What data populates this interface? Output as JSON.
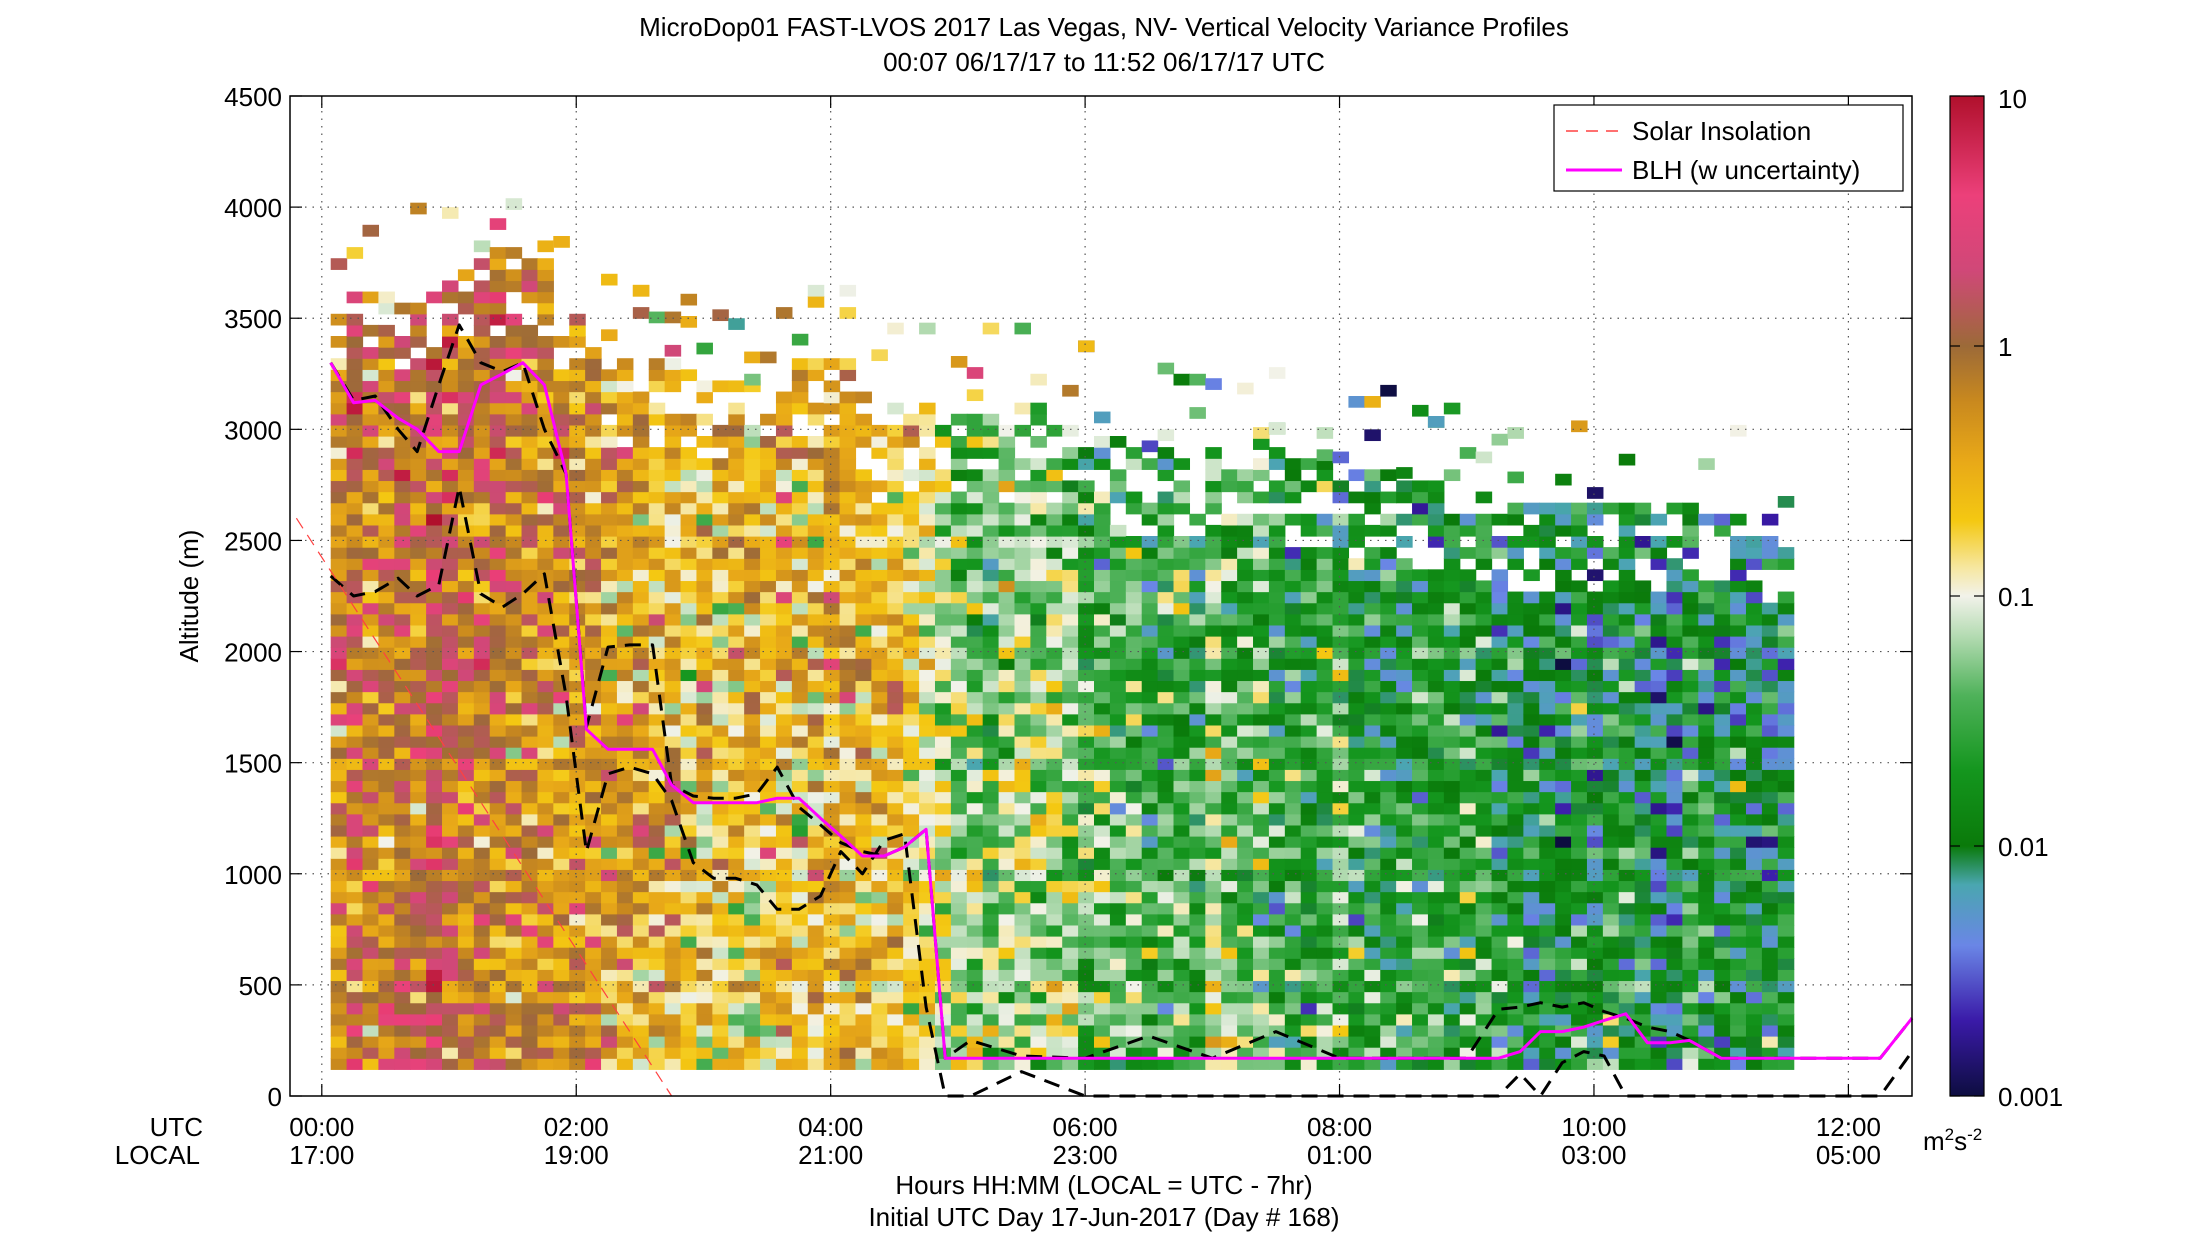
{
  "chart_data": {
    "type": "heatmap",
    "title": "MicroDop01 FAST-LVOS 2017 Las Vegas, NV- Vertical Velocity Variance Profiles",
    "subtitle": "00:07 06/17/17 to 11:52 06/17/17  UTC",
    "ylabel": "Altitude (m)",
    "xlabel": "Hours HH:MM  (LOCAL = UTC - 7hr)",
    "xlabel2": "Initial UTC Day 17-Jun-2017 (Day # 168)",
    "x_row_labels": {
      "utc": "UTC",
      "local": "LOCAL"
    },
    "ylim": [
      0,
      4500
    ],
    "xlim_hours_utc": [
      -0.25,
      12.5
    ],
    "yticks": [
      "0",
      "500",
      "1000",
      "1500",
      "2000",
      "2500",
      "3000",
      "3500",
      "4000",
      "4500"
    ],
    "xticks_utc": [
      "00:00",
      "02:00",
      "04:00",
      "06:00",
      "08:00",
      "10:00",
      "12:00"
    ],
    "xticks_local": [
      "17:00",
      "19:00",
      "21:00",
      "23:00",
      "01:00",
      "03:00",
      "05:00"
    ],
    "grid": true,
    "legend": {
      "placement": "top-right",
      "entries": [
        {
          "label": "Solar Insolation",
          "color": "#ff4040",
          "style": "dashed"
        },
        {
          "label": "BLH (w uncertainty)",
          "color": "#ff00ff",
          "style": "solid"
        }
      ]
    },
    "colorbar": {
      "scale": "log",
      "range": [
        0.001,
        10
      ],
      "ticks": [
        "0.001",
        "0.01",
        "0.1",
        "1",
        "10"
      ],
      "units_base": "m",
      "units_sup1": "2",
      "units_mid": "s",
      "units_sup2": "-2",
      "stops": [
        {
          "v": 0.001,
          "color": "#0d0d40"
        },
        {
          "v": 0.002,
          "color": "#3a1aa8"
        },
        {
          "v": 0.004,
          "color": "#6a86e6"
        },
        {
          "v": 0.007,
          "color": "#4aa6b0"
        },
        {
          "v": 0.01,
          "color": "#0a7a0a"
        },
        {
          "v": 0.02,
          "color": "#14961e"
        },
        {
          "v": 0.04,
          "color": "#4fb25a"
        },
        {
          "v": 0.07,
          "color": "#b6dcb4"
        },
        {
          "v": 0.1,
          "color": "#f2f2ea"
        },
        {
          "v": 0.13,
          "color": "#f6e7a0"
        },
        {
          "v": 0.2,
          "color": "#f4c812"
        },
        {
          "v": 0.35,
          "color": "#e8a818"
        },
        {
          "v": 0.6,
          "color": "#c9891e"
        },
        {
          "v": 1.0,
          "color": "#9c6a38"
        },
        {
          "v": 2.0,
          "color": "#d04878"
        },
        {
          "v": 4.0,
          "color": "#ec407a"
        },
        {
          "v": 10.0,
          "color": "#b0102c"
        }
      ]
    },
    "series": [
      {
        "name": "BLH (w uncertainty)",
        "color": "#ff00ff",
        "x": [
          0.07,
          0.25,
          0.42,
          0.6,
          0.75,
          0.92,
          1.08,
          1.25,
          1.42,
          1.58,
          1.75,
          1.92,
          2.08,
          2.25,
          2.42,
          2.6,
          2.75,
          2.92,
          3.08,
          3.25,
          3.42,
          3.58,
          3.75,
          3.92,
          4.08,
          4.25,
          4.42,
          4.58,
          4.75,
          4.9,
          5.1,
          5.5,
          6.0,
          6.5,
          7.0,
          7.5,
          8.0,
          8.5,
          9.0,
          9.25,
          9.42,
          9.58,
          9.75,
          9.92,
          10.08,
          10.25,
          10.42,
          10.6,
          10.75,
          11.0,
          11.5,
          12.0,
          12.25,
          12.5
        ],
        "y": [
          3300,
          3120,
          3130,
          3050,
          3000,
          2900,
          2900,
          3200,
          3250,
          3300,
          3200,
          2800,
          1650,
          1560,
          1560,
          1560,
          1400,
          1320,
          1320,
          1320,
          1320,
          1340,
          1340,
          1250,
          1170,
          1080,
          1080,
          1120,
          1200,
          170,
          170,
          170,
          170,
          170,
          170,
          170,
          170,
          170,
          170,
          170,
          200,
          290,
          290,
          310,
          340,
          370,
          240,
          240,
          250,
          170,
          170,
          170,
          170,
          350
        ]
      },
      {
        "name": "BLH upper",
        "color": "#000000",
        "x": [
          0.07,
          0.25,
          0.42,
          0.6,
          0.75,
          0.92,
          1.08,
          1.25,
          1.42,
          1.58,
          1.75,
          1.92,
          2.08,
          2.25,
          2.42,
          2.6,
          2.75,
          2.92,
          3.08,
          3.25,
          3.42,
          3.58,
          3.75,
          3.92,
          4.08,
          4.25,
          4.42,
          4.58,
          4.75,
          4.9,
          5.1,
          5.5,
          6.0,
          6.5,
          7.0,
          7.5,
          8.0,
          8.5,
          9.0,
          9.25,
          9.42,
          9.58,
          9.75,
          9.92,
          10.08,
          10.25,
          10.42,
          10.6,
          10.75,
          11.0,
          11.5,
          12.0,
          12.25,
          12.5
        ],
        "y": [
          3300,
          3130,
          3150,
          3000,
          2900,
          3200,
          3470,
          3300,
          3260,
          3300,
          3000,
          2800,
          1660,
          2020,
          2030,
          2030,
          1400,
          1350,
          1340,
          1340,
          1360,
          1480,
          1300,
          1220,
          1140,
          1100,
          1080,
          1120,
          1200,
          170,
          250,
          180,
          170,
          270,
          170,
          290,
          170,
          170,
          170,
          390,
          400,
          420,
          400,
          420,
          380,
          350,
          310,
          290,
          250,
          170,
          170,
          170,
          170,
          350
        ]
      },
      {
        "name": "BLH lower",
        "color": "#000000",
        "x": [
          0.07,
          0.25,
          0.42,
          0.6,
          0.75,
          0.92,
          1.08,
          1.25,
          1.42,
          1.58,
          1.75,
          1.92,
          2.08,
          2.25,
          2.42,
          2.6,
          2.75,
          2.92,
          3.08,
          3.25,
          3.42,
          3.58,
          3.75,
          3.92,
          4.08,
          4.25,
          4.42,
          4.58,
          4.75,
          4.9,
          5.1,
          5.5,
          6.0,
          6.5,
          7.0,
          7.5,
          8.0,
          8.5,
          9.0,
          9.25,
          9.42,
          9.58,
          9.75,
          9.92,
          10.08,
          10.25,
          10.42,
          10.6,
          10.75,
          11.0,
          11.5,
          12.0,
          12.25,
          12.5
        ],
        "y": [
          2340,
          2250,
          2270,
          2330,
          2250,
          2300,
          2740,
          2260,
          2200,
          2260,
          2350,
          1800,
          1100,
          1450,
          1480,
          1450,
          1330,
          1050,
          980,
          980,
          950,
          840,
          840,
          900,
          1100,
          1000,
          1150,
          1180,
          400,
          0,
          0,
          110,
          0,
          0,
          0,
          0,
          0,
          0,
          0,
          0,
          100,
          0,
          150,
          200,
          180,
          0,
          0,
          0,
          0,
          0,
          0,
          0,
          0,
          200
        ]
      },
      {
        "name": "Solar Insolation",
        "color": "#ff4040",
        "x": [
          -0.2,
          2.75
        ],
        "y": [
          2600,
          0
        ]
      }
    ],
    "heatmap": {
      "x_start_hours": 0.07,
      "dx_hours": 0.125,
      "y_start_m": 100,
      "dy_m": 50,
      "ncols": 92,
      "top_m": [
        3620,
        3620,
        3620,
        3620,
        3620,
        3620,
        3620,
        3700,
        3720,
        3800,
        3800,
        3840,
        3800,
        3800,
        3520,
        3500,
        3460,
        3300,
        3300,
        3300,
        3280,
        3280,
        3260,
        3240,
        3240,
        3200,
        3200,
        3200,
        3200,
        3280,
        3300,
        3300,
        3300,
        3200,
        3060,
        3080,
        3080,
        3080,
        3080,
        3080,
        3080,
        3080,
        3060,
        3080,
        3100,
        3050,
        3000,
        3000,
        2980,
        2960,
        2900,
        2900,
        2900,
        2900,
        2900,
        2880,
        2880,
        2860,
        2860,
        2880,
        2840,
        2860,
        2860,
        2800,
        2800,
        2800,
        2800,
        2780,
        2760,
        2760,
        2720,
        2720,
        2700,
        2680,
        2660,
        2650,
        2650,
        2650,
        2640,
        2640,
        2640,
        2640,
        2640,
        2640,
        2640,
        2640,
        2620,
        2620,
        2620,
        2600,
        2600,
        2600
      ],
      "bottom_m": [
        120,
        120,
        120,
        120,
        120,
        120,
        120,
        120,
        120,
        120,
        120,
        120,
        120,
        120,
        120,
        120,
        120,
        120,
        120,
        120,
        120,
        120,
        120,
        120,
        120,
        120,
        120,
        120,
        120,
        120,
        120,
        120,
        120,
        120,
        120,
        120,
        120,
        120,
        120,
        120,
        120,
        120,
        120,
        120,
        120,
        120,
        120,
        120,
        120,
        120,
        120,
        120,
        120,
        120,
        120,
        120,
        120,
        120,
        120,
        120,
        120,
        120,
        120,
        120,
        120,
        120,
        120,
        120,
        120,
        120,
        120,
        120,
        120,
        120,
        120,
        120,
        120,
        120,
        120,
        120,
        120,
        120,
        120,
        120,
        120,
        120,
        120,
        120,
        120,
        120,
        120,
        120
      ],
      "base_log10_by_hour": [
        [
          0.0,
          -0.2
        ],
        [
          1.0,
          -0.1
        ],
        [
          2.0,
          -0.3
        ],
        [
          2.5,
          -0.55
        ],
        [
          3.0,
          -0.85
        ],
        [
          3.5,
          -0.7
        ],
        [
          4.0,
          -0.6
        ],
        [
          4.5,
          -0.75
        ],
        [
          5.0,
          -1.2
        ],
        [
          5.5,
          -0.9
        ],
        [
          6.0,
          -1.3
        ],
        [
          6.5,
          -1.4
        ],
        [
          7.0,
          -1.2
        ],
        [
          7.5,
          -1.35
        ],
        [
          8.0,
          -1.5
        ],
        [
          8.5,
          -1.6
        ],
        [
          9.0,
          -1.55
        ],
        [
          9.5,
          -1.7
        ],
        [
          10.0,
          -1.75
        ],
        [
          10.5,
          -1.8
        ],
        [
          11.0,
          -1.7
        ],
        [
          11.5,
          -1.85
        ],
        [
          11.9,
          -1.8
        ]
      ],
      "upper_drift_log10_per_km": 0.15,
      "noise_log10": 0.35,
      "seed": 168
    }
  }
}
